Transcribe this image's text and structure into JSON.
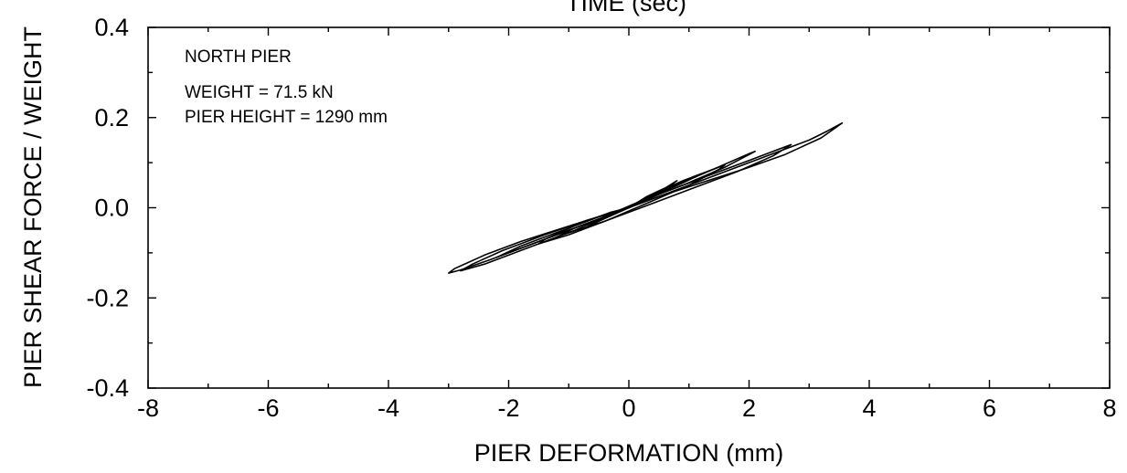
{
  "chart_data": {
    "type": "line",
    "top_title_partial": "TIME (sec)",
    "xlabel": "PIER DEFORMATION (mm)",
    "ylabel": "PIER SHEAR FORCE / WEIGHT",
    "xlim": [
      -8,
      8
    ],
    "ylim": [
      -0.4,
      0.4
    ],
    "x_ticks": [
      -8,
      -6,
      -4,
      -2,
      0,
      2,
      4,
      6,
      8
    ],
    "x_tick_labels": [
      "-8",
      "-6",
      "-4",
      "-2",
      "0",
      "2",
      "4",
      "6",
      "8"
    ],
    "y_ticks": [
      -0.4,
      -0.2,
      0.0,
      0.2,
      0.4
    ],
    "y_tick_labels": [
      "-0.4",
      "-0.2",
      "0.0",
      "0.2",
      "0.4"
    ],
    "x_minor_step": 1,
    "y_minor_step": 0.1,
    "grid": false,
    "annotations": {
      "title": "NORTH PIER",
      "weight": "WEIGHT = 71.5 kN",
      "height": "PIER HEIGHT = 1290 mm"
    },
    "series": [
      {
        "x": [
          0,
          0.8,
          1.6,
          2.4,
          3.0,
          3.3,
          3.55,
          3.2,
          2.6,
          1.9,
          1.2,
          0.5,
          -0.2,
          -0.9,
          -1.6,
          -2.3,
          -2.8,
          -3.0,
          -2.9,
          -2.4,
          -1.8,
          -1.1,
          -0.5,
          0
        ],
        "y": [
          0.0,
          0.04,
          0.08,
          0.12,
          0.15,
          0.17,
          0.188,
          0.155,
          0.118,
          0.085,
          0.055,
          0.025,
          -0.01,
          -0.045,
          -0.08,
          -0.115,
          -0.138,
          -0.145,
          -0.135,
          -0.105,
          -0.075,
          -0.045,
          -0.02,
          0.0
        ]
      },
      {
        "x": [
          0,
          0.6,
          1.3,
          2.0,
          2.5,
          2.7,
          2.4,
          1.8,
          1.1,
          0.4,
          -0.4,
          -1.1,
          -1.8,
          -2.4,
          -2.8,
          -2.6,
          -2.1,
          -1.4,
          -0.7,
          0
        ],
        "y": [
          0.0,
          0.035,
          0.07,
          0.105,
          0.13,
          0.14,
          0.115,
          0.08,
          0.045,
          0.01,
          -0.03,
          -0.06,
          -0.095,
          -0.125,
          -0.14,
          -0.125,
          -0.095,
          -0.06,
          -0.028,
          0.0
        ]
      },
      {
        "x": [
          0,
          0.7,
          1.4,
          2.0,
          2.1,
          1.6,
          0.9,
          0.2,
          -0.5,
          -1.2,
          -1.9,
          -2.2,
          -1.8,
          -1.1,
          -0.4,
          0
        ],
        "y": [
          0.0,
          0.045,
          0.085,
          0.12,
          0.125,
          0.09,
          0.05,
          0.015,
          -0.025,
          -0.06,
          -0.095,
          -0.11,
          -0.085,
          -0.05,
          -0.015,
          0.0
        ]
      },
      {
        "x": [
          0,
          0.5,
          1.1,
          1.6,
          1.5,
          1.0,
          0.3,
          -0.4,
          -1.0,
          -1.5,
          -1.4,
          -0.9,
          -0.3,
          0
        ],
        "y": [
          0.0,
          0.035,
          0.07,
          0.095,
          0.085,
          0.05,
          0.01,
          -0.03,
          -0.06,
          -0.08,
          -0.07,
          -0.04,
          -0.01,
          0.0
        ]
      },
      {
        "x": [
          0,
          0.4,
          0.9,
          1.2,
          0.9,
          0.3,
          -0.3,
          -0.9,
          -1.2,
          -0.9,
          -0.4,
          0
        ],
        "y": [
          0.0,
          0.03,
          0.06,
          0.075,
          0.055,
          0.02,
          -0.015,
          -0.05,
          -0.065,
          -0.045,
          -0.02,
          0.0
        ]
      },
      {
        "x": [
          0,
          0.3,
          0.7,
          0.8,
          0.5,
          0.0,
          -0.5,
          -0.8,
          -0.6,
          -0.2,
          0
        ],
        "y": [
          0.0,
          0.025,
          0.05,
          0.06,
          0.035,
          0.0,
          -0.03,
          -0.05,
          -0.035,
          -0.01,
          0.0
        ]
      }
    ]
  }
}
